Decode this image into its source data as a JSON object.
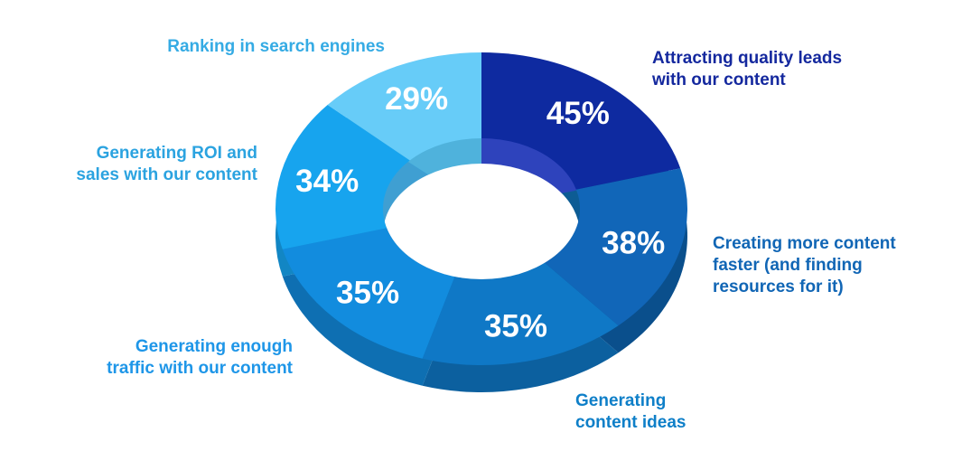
{
  "chart_data": {
    "type": "pie",
    "variant": "3d-donut",
    "unit": "%",
    "background_color": "#FFFFFF",
    "percent_label_color": "#FFFFFF",
    "legend_position": "around-chart",
    "segments": [
      {
        "id": "attracting-quality-leads",
        "label": "Attracting quality leads\nwith our content",
        "value": 45,
        "display": "45%",
        "face_color": "#0E2AA0",
        "side_color": "#0A1F7A",
        "wall_color": "#2E43BC",
        "label_color": "#14289E"
      },
      {
        "id": "creating-more-content-faster",
        "label": "Creating more content\nfaster (and finding\nresources for it)",
        "value": 38,
        "display": "38%",
        "face_color": "#1166B8",
        "side_color": "#0A4F8C",
        "wall_color": "#0D5C94",
        "label_color": "#1166B5"
      },
      {
        "id": "generating-content-ideas",
        "label": "Generating\ncontent ideas",
        "value": 35,
        "display": "35%",
        "face_color": "#0F78C6",
        "side_color": "#0C609F",
        "wall_color": "#0C609F",
        "label_color": "#0E7FC8"
      },
      {
        "id": "generating-enough-traffic",
        "label": "Generating enough\ntraffic with our content",
        "value": 35,
        "display": "35%",
        "face_color": "#128CDE",
        "side_color": "#0E6FB2",
        "wall_color": "#0E6FB2",
        "label_color": "#1E96E8"
      },
      {
        "id": "generating-roi-sales",
        "label": "Generating ROI and\nsales with our content",
        "value": 34,
        "display": "34%",
        "face_color": "#17A4EE",
        "side_color": "#1286C4",
        "wall_color": "#3F9FD2",
        "label_color": "#2BA3E0"
      },
      {
        "id": "ranking-search-engines",
        "label": "Ranking in search engines",
        "value": 29,
        "display": "29%",
        "face_color": "#67CCF8",
        "side_color": "#4FB0E0",
        "wall_color": "#4FB2DC",
        "label_color": "#35ABE4"
      }
    ]
  }
}
